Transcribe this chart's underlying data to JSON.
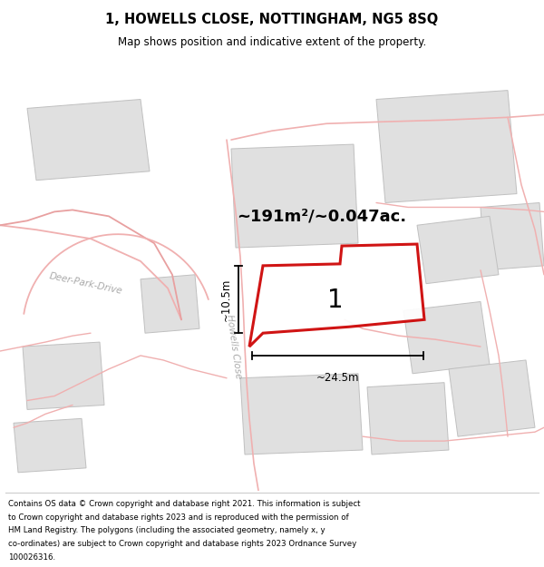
{
  "title": "1, HOWELLS CLOSE, NOTTINGHAM, NG5 8SQ",
  "subtitle": "Map shows position and indicative extent of the property.",
  "area_text": "~191m²/~0.047ac.",
  "label": "1",
  "dim_width": "~24.5m",
  "dim_height": "~10.5m",
  "road_label": "Howells Close",
  "road_label2": "Deer-Park-Drive",
  "footer_lines": [
    "Contains OS data © Crown copyright and database right 2021. This information is subject",
    "to Crown copyright and database rights 2023 and is reproduced with the permission of",
    "HM Land Registry. The polygons (including the associated geometry, namely x, y",
    "co-ordinates) are subject to Crown copyright and database rights 2023 Ordnance Survey",
    "100026316."
  ],
  "bg_color": "#f8f8f8",
  "plot_edge": "#cc0000",
  "road_color": "#f0b0b0",
  "road_color2": "#e8a0a0",
  "building_fill": "#e0e0e0",
  "building_edge": "#c0c0c0"
}
